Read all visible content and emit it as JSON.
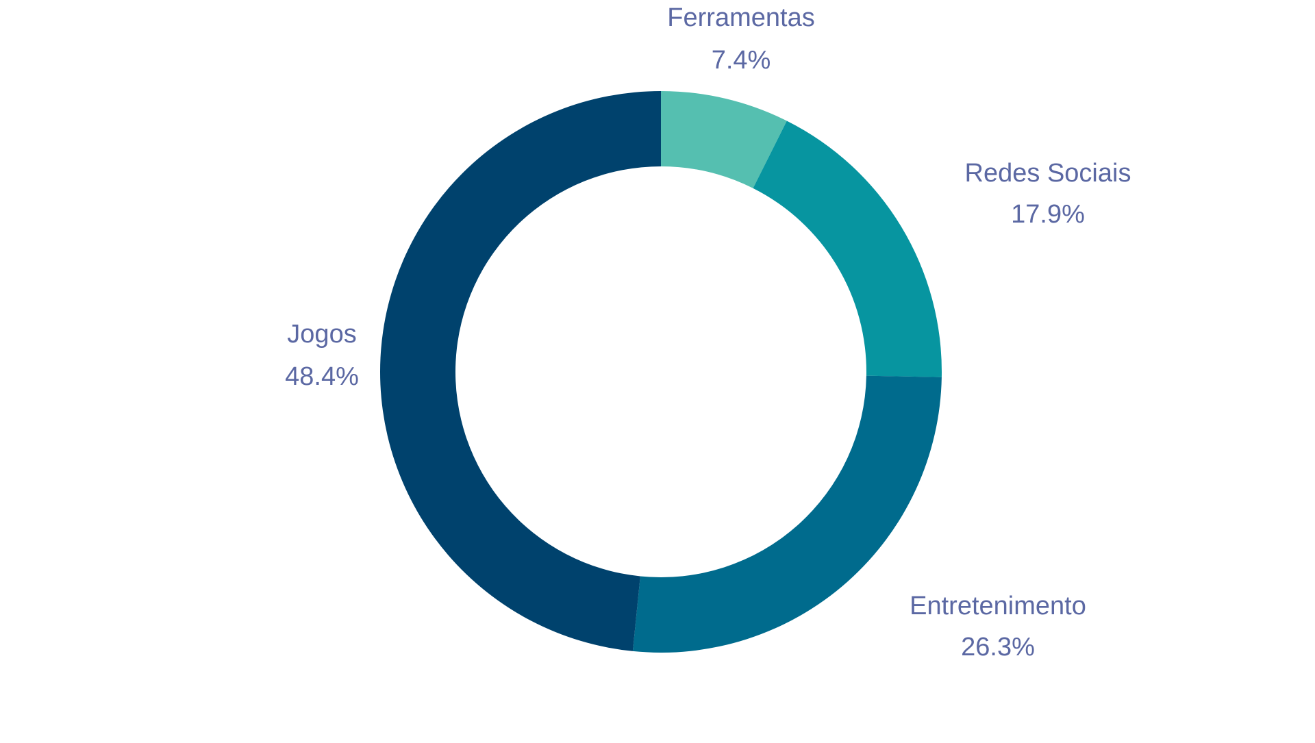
{
  "chart_data": {
    "type": "pie",
    "variant": "donut",
    "title": "",
    "slices": [
      {
        "label": "Ferramentas",
        "value": 7.4,
        "display": "7.4%",
        "color": "#55bfb0"
      },
      {
        "label": "Redes Sociais",
        "value": 17.9,
        "display": "17.9%",
        "color": "#0795a0"
      },
      {
        "label": "Entretenimento",
        "value": 26.3,
        "display": "26.3%",
        "color": "#006b8d"
      },
      {
        "label": "Jogos",
        "value": 48.4,
        "display": "48.4%",
        "color": "#00426d"
      }
    ],
    "start": "top",
    "direction": "clockwise",
    "legend": "none",
    "label_color": "#5b68a3"
  }
}
